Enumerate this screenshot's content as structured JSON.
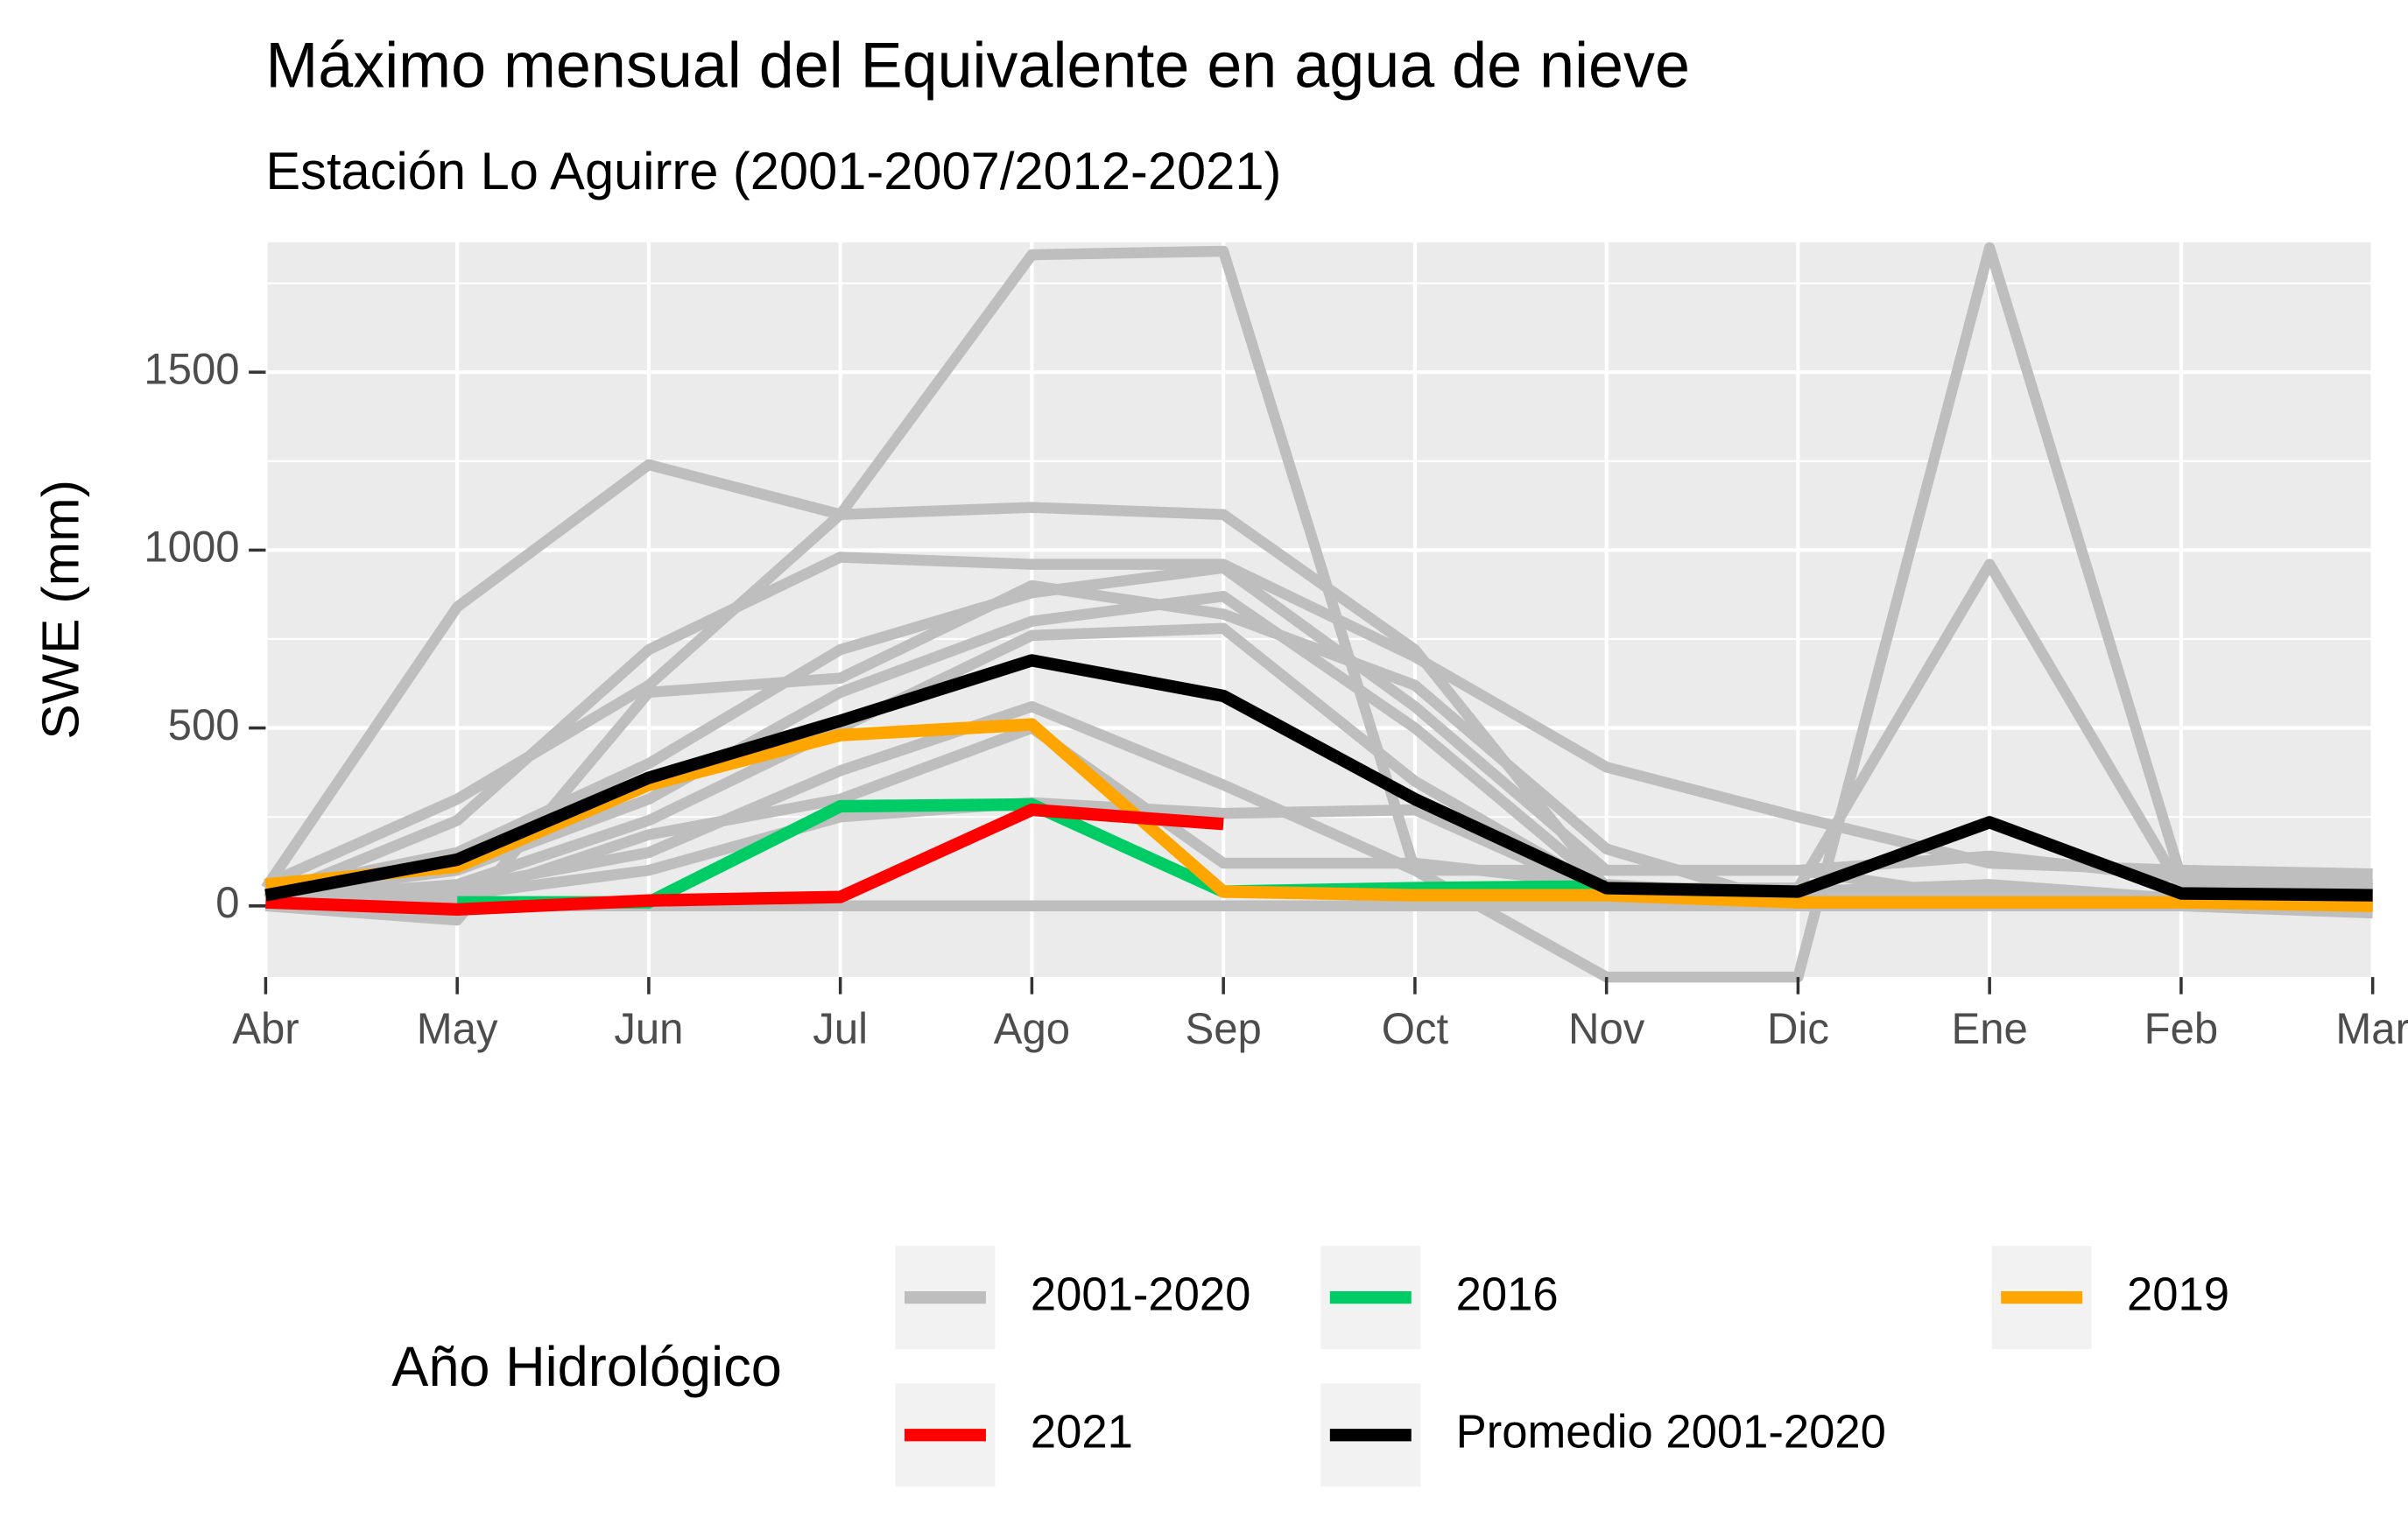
{
  "chart_data": {
    "type": "line",
    "title": "Máximo mensual del Equivalente en agua de nieve",
    "subtitle": "Estación Lo Aguirre (2001-2007/2012-2021)",
    "ylabel": "SWE (mm)",
    "legend_title": "Año Hidrológico",
    "categories": [
      "Abr",
      "May",
      "Jun",
      "Jul",
      "Ago",
      "Sep",
      "Oct",
      "Nov",
      "Dic",
      "Ene",
      "Feb",
      "Mar"
    ],
    "ylim": [
      -200,
      1865
    ],
    "yticks": [
      0,
      500,
      1000,
      1500
    ],
    "yminor": [
      250,
      750,
      1250,
      1750
    ],
    "grid": true,
    "series": [
      {
        "name": "2001-2020",
        "color": "#bebebe",
        "lines": [
          [
            60,
            300,
            620,
            1100,
            1830,
            1840,
            100,
            -200,
            -200,
            1850,
            80,
            60
          ],
          [
            50,
            840,
            1240,
            1100,
            1120,
            1100,
            720,
            50,
            50,
            960,
            50,
            40
          ],
          [
            20,
            240,
            720,
            980,
            960,
            960,
            700,
            390,
            250,
            120,
            100,
            90
          ],
          [
            0,
            -40,
            600,
            640,
            900,
            820,
            620,
            160,
            0,
            0,
            0,
            -20
          ],
          [
            40,
            150,
            400,
            720,
            880,
            950,
            560,
            100,
            100,
            140,
            80,
            50
          ],
          [
            30,
            100,
            300,
            600,
            800,
            870,
            500,
            50,
            40,
            60,
            20,
            10
          ],
          [
            20,
            60,
            240,
            500,
            760,
            780,
            350,
            40,
            20,
            30,
            10,
            10
          ],
          [
            10,
            50,
            150,
            380,
            560,
            340,
            100,
            100,
            100,
            20,
            10,
            0
          ],
          [
            0,
            30,
            100,
            250,
            290,
            260,
            270,
            30,
            0,
            0,
            0,
            0
          ],
          [
            0,
            0,
            0,
            0,
            0,
            0,
            0,
            0,
            0,
            0,
            0,
            0
          ],
          [
            10,
            20,
            200,
            300,
            500,
            120,
            120,
            60,
            30,
            20,
            0,
            0
          ]
        ]
      },
      {
        "name": "2016",
        "color": "#00cc66",
        "values": [
          null,
          10,
          10,
          280,
          285,
          40,
          50,
          55,
          null,
          null,
          null,
          null
        ]
      },
      {
        "name": "2019",
        "color": "#ffa500",
        "values": [
          60,
          110,
          340,
          480,
          510,
          40,
          30,
          30,
          10,
          10,
          10,
          0
        ]
      },
      {
        "name": "2021",
        "color": "#ff0000",
        "values": [
          10,
          -10,
          15,
          25,
          270,
          230,
          null,
          null,
          null,
          null,
          null,
          null
        ]
      },
      {
        "name": "Promedio 2001-2020",
        "color": "#000000",
        "values": [
          30,
          130,
          360,
          520,
          690,
          590,
          300,
          50,
          40,
          235,
          35,
          30
        ]
      }
    ]
  }
}
